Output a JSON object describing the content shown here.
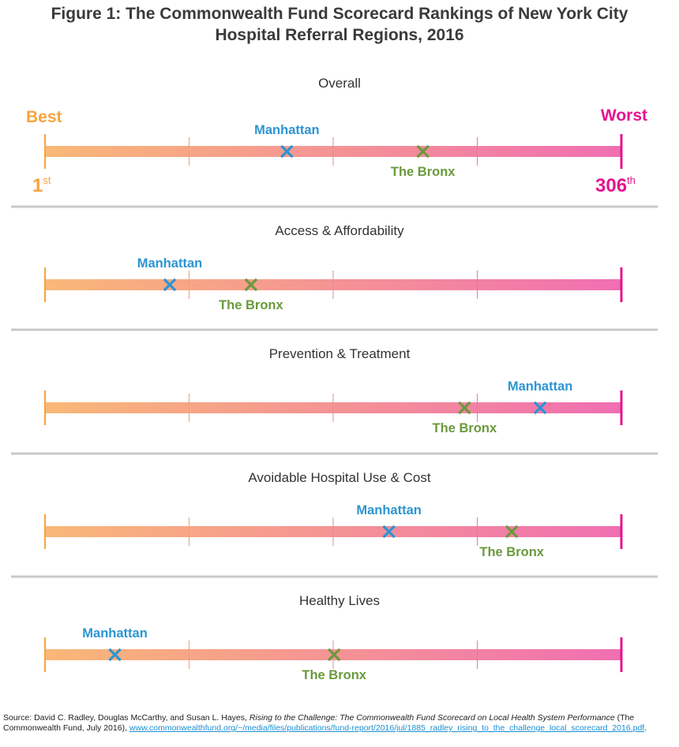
{
  "title_line1": "Figure 1: The Commonwealth Fund Scorecard Rankings of New York City",
  "title_line2": "Hospital Referral Regions, 2016",
  "chart_data": [
    {
      "type": "scatter",
      "title": "Overall",
      "scale_min": 1,
      "scale_max": 306,
      "scale_start_label": "Best",
      "scale_end_label": "Worst",
      "min_rank_label": "1",
      "min_rank_suffix": "st",
      "max_rank_label": "306",
      "max_rank_suffix": "th",
      "points": [
        {
          "name": "Manhattan",
          "rank": 129
        },
        {
          "name": "The Bronx",
          "rank": 201
        }
      ]
    },
    {
      "type": "scatter",
      "title": "Access & Affordability",
      "scale_min": 1,
      "scale_max": 306,
      "points": [
        {
          "name": "Manhattan",
          "rank": 67
        },
        {
          "name": "The Bronx",
          "rank": 110
        }
      ]
    },
    {
      "type": "scatter",
      "title": "Prevention & Treatment",
      "scale_min": 1,
      "scale_max": 306,
      "points": [
        {
          "name": "Manhattan",
          "rank": 263
        },
        {
          "name": "The Bronx",
          "rank": 223
        }
      ]
    },
    {
      "type": "scatter",
      "title": "Avoidable Hospital Use & Cost",
      "scale_min": 1,
      "scale_max": 306,
      "points": [
        {
          "name": "Manhattan",
          "rank": 183
        },
        {
          "name": "The Bronx",
          "rank": 248
        }
      ]
    },
    {
      "type": "scatter",
      "title": "Healthy Lives",
      "scale_min": 1,
      "scale_max": 306,
      "points": [
        {
          "name": "Manhattan",
          "rank": 38
        },
        {
          "name": "The Bronx",
          "rank": 154
        }
      ]
    }
  ],
  "colors": {
    "best": "#f7a440",
    "worst": "#e4158f",
    "bar_start": "#f9b877",
    "bar_end": "#f06fb2",
    "manhattan": "#2c95d2",
    "bronx": "#6a9a3c",
    "divider": "#c8c8c8",
    "text": "#333333"
  },
  "source": {
    "prefix": "Source: David C. Radley, Douglas McCarthy, and Susan L. Hayes, ",
    "report_title": "Rising to the Challenge: The Commonwealth Fund Scorecard on Local Health System Performance",
    "publisher": " (The Commonwealth Fund, July 2016), ",
    "url": "www.commonwealthfund.org/~/media/files/publications/fund-report/2016/jul/1885_radley_rising_to_the_challenge_local_scorecard_2016.pdf",
    "suffix": "."
  }
}
